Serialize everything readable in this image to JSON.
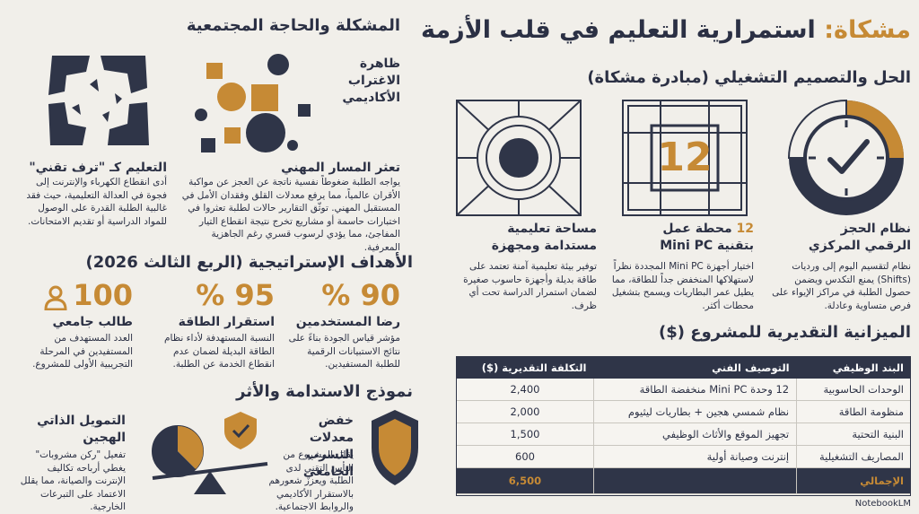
{
  "header": {
    "title_prefix": "مشكاة:",
    "title": "استمرارية التعليم في قلب الأزمة"
  },
  "solution": {
    "heading": "الحل والتصميم التشغيلي (مبادرة مشكاة)",
    "cards": [
      {
        "title": "نظام الحجز الرقمي المركزي",
        "text": "نظام لتقسيم اليوم إلى ورديات (Shifts) يمنع التكدس ويضمن حصول الطلبة في مراكز الإيواء على فرص متساوية وعادلة."
      },
      {
        "number": "12",
        "title": "محطة عمل بتقنية Mini PC",
        "text": "اختيار أجهزة Mini PC المجددة نظراً لاستهلاكها المنخفض جداً للطاقة، مما يطيل عمر البطاريات ويسمح بتشغيل محطات أكثر."
      },
      {
        "title": "مساحة تعليمية مستدامة ومجهزة",
        "text": "توفير بيئة تعليمية آمنة تعتمد على طاقة بديلة وأجهزة حاسوب صغيرة لضمان استمرار الدراسة تحت أي ظرف."
      }
    ]
  },
  "budget": {
    "heading": "الميزانية التقديرية للمشروع ($)",
    "table": {
      "columns": [
        "البند الوظيفي",
        "التوصيف الفني",
        "التكلفة التقديرية ($)"
      ],
      "rows": [
        [
          "الوحدات الحاسوبية",
          "12 وحدة Mini PC منخفضة الطاقة",
          "2,400"
        ],
        [
          "منظومة الطاقة",
          "نظام شمسي هجين + بطاريات ليثيوم",
          "2,000"
        ],
        [
          "البنية التحتية",
          "تجهيز الموقع والأثاث الوظيفي",
          "1,500"
        ],
        [
          "المصاريف التشغيلية",
          "إنترنت وصيانة أولية",
          "600"
        ]
      ],
      "total": {
        "label": "الإجمالي",
        "value": "6,500"
      }
    }
  },
  "problem": {
    "heading": "المشكلة والحاجة المجتمعية",
    "phenomenon": "ظاهرة الاغتراب الأكاديمي",
    "items": [
      {
        "title": "تعثر المسار المهني",
        "text": "يواجه الطلبة ضغوطاً نفسية ناتجة عن العجز عن مواكبة الأقران عالمياً، مما يرفع معدلات القلق وفقدان الأمل في المستقبل المهني. توثّق التقارير حالات لطلبة تعثروا في اختبارات حاسمة أو مشاريع تخرج نتيجة انقطاع التيار المفاجئ، مما يؤدي لرسوب قسري رغم الجاهزية المعرفية."
      },
      {
        "title": "التعليم كـ \"ترف تقني\"",
        "text": "أدى انقطاع الكهرباء والإنترنت إلى فجوة في العدالة التعليمية، حيث فقد غالبية الطلبة القدرة على الوصول للمواد الدراسية أو تقديم الامتحانات."
      }
    ]
  },
  "goals": {
    "heading": "الأهداف الإستراتيجية (الربع الثالث 2026)",
    "items": [
      {
        "value": "90 %",
        "title": "رضا المستخدمين",
        "text": "مؤشر قياس الجودة بناءً على نتائج الاستبيانات الرقمية للطلبة المستفيدين."
      },
      {
        "value": "95 %",
        "title": "استقرار الطاقة",
        "text": "النسبة المستهدفة لأداء نظام الطاقة البديلة لضمان عدم انقطاع الخدمة عن الطلبة."
      },
      {
        "value": "100",
        "title": "طالب جامعي",
        "text": "العدد المستهدف من المستفيدين في المرحلة التجريبية الأولى للمشروع."
      }
    ]
  },
  "impact": {
    "heading": "نموذج الاستدامة والأثر",
    "items": [
      {
        "title": "خفض معدلات التسرب الجامعي",
        "text": "يقلل المشروع من اليأس التقني لدى الطلبة ويعزز شعورهم بالاستقرار الأكاديمي والروابط الاجتماعية."
      },
      {
        "title": "التمويل الذاتي الهجين",
        "text": "تفعيل \"ركن مشروبات\" يغطي أرباحه تكاليف الإنترنت والصيانة، مما يقلل الاعتماد على التبرعات الخارجية."
      }
    ]
  },
  "footer": {
    "brand": "NotebookLM"
  }
}
